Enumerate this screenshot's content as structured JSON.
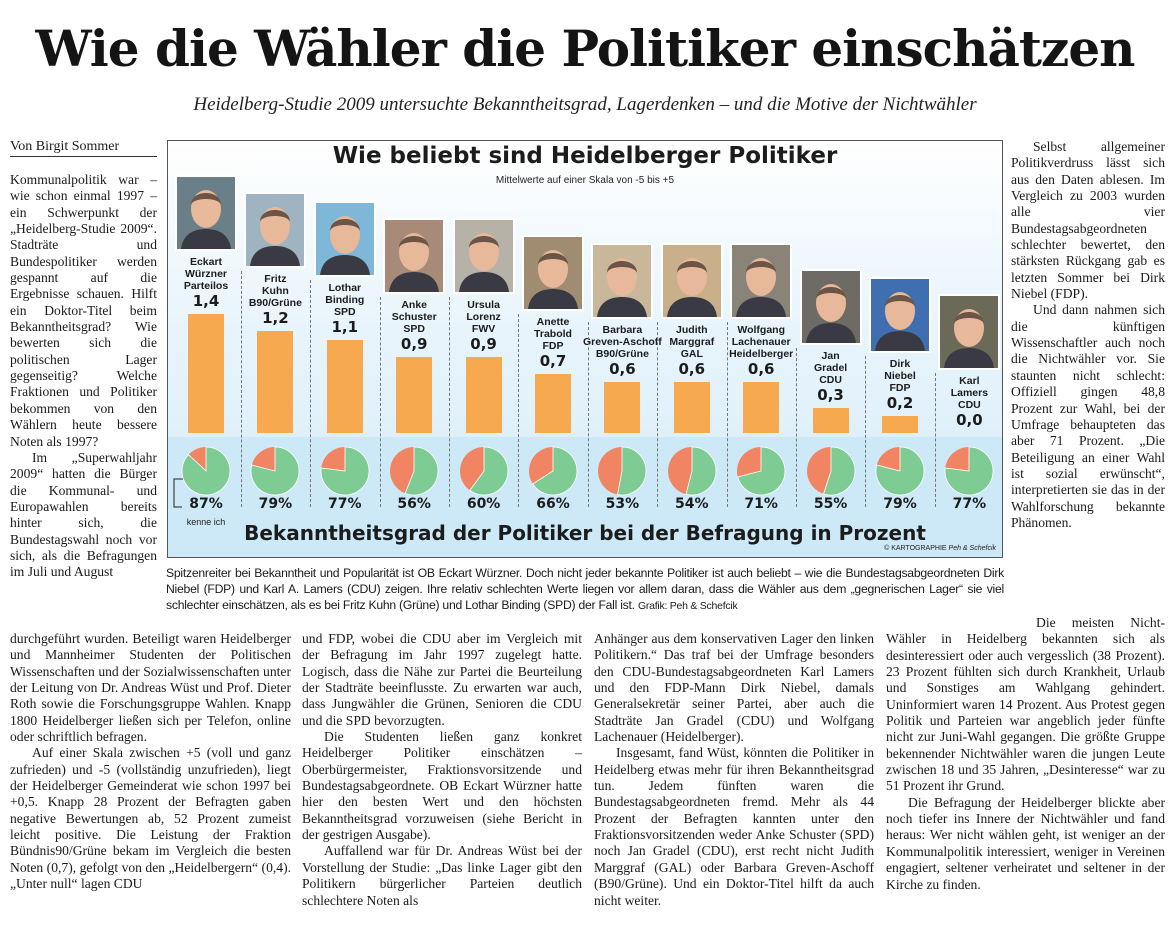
{
  "headline": "Wie die Wähler die Politiker einschätzen",
  "subline": "Heidelberg-Studie 2009 untersuchte Bekanntheitsgrad, Lagerdenken – und die Motive der Nichtwähler",
  "author": "Von Birgit Sommer",
  "columns": {
    "left_top": [
      "Kommunalpolitik war – wie schon einmal 1997 – ein Schwerpunkt der „Heidelberg-Studie 2009“. Stadträte und Bundespolitiker werden gespannt auf die Ergebnisse schauen. Hilft ein Doktor-Titel beim Bekanntheitsgrad? Wie bewerten sich die politischen Lager gegenseitig? Welche Fraktionen und Politiker bekommen von den Wählern heute bessere Noten als 1997?",
      "Im „Superwahljahr 2009“ hatten die Bürger die Kommunal- und Europawahlen bereits hinter sich, die Bundestagswahl noch vor sich, als die Befragungen im Juli und August"
    ],
    "right_top": [
      "Selbst allgemeiner Politikverdruss lässt sich aus den Daten ablesen. Im Vergleich zu 2003 wurden alle vier Bundestagsabgeordneten schlechter bewertet, den stärksten Rückgang gab es letzten Sommer bei Dirk Niebel (FDP).",
      "Und dann nahmen sich die künftigen Wissenschaftler auch noch die Nichtwähler vor. Sie staunten nicht schlecht: Offiziell gingen 48,8 Prozent zur Wahl, bei der Umfrage behaupteten das aber 71 Prozent. „Die Beteiligung an einer Wahl ist sozial erwünscht“, interpretierten sie das in der Wahlforschung bekannte Phänomen."
    ],
    "bottom_1": [
      "durchgeführt wurden. Beteiligt waren Heidelberger und Mannheimer Studenten der Politischen Wissenschaften und der Sozialwissenschaften unter der Leitung von Dr. Andreas Wüst und Prof. Dieter Roth sowie die Forschungsgruppe Wahlen. Knapp 1800 Heidelberger ließen sich per Telefon, online oder schriftlich befragen.",
      "Auf einer Skala zwischen +5 (voll und ganz zufrieden) und -5 (vollständig unzufrieden), liegt der Heidelberger Gemeinderat wie schon 1997 bei +0,5. Knapp 28 Prozent der Befragten gaben negative Bewertungen ab, 52 Prozent zumeist leicht positive. Die Leistung der Fraktion Bündnis90/Grüne bekam im Vergleich die besten Noten (0,7), gefolgt von den „Heidelbergern“ (0,4). „Unter null“ lagen CDU"
    ],
    "bottom_2": [
      "und FDP, wobei die CDU aber im Vergleich mit der Befragung im Jahr 1997 zugelegt hatte. Logisch, dass die Nähe zur Partei die Beurteilung der Stadträte beeinflusste. Zu erwarten war auch, dass Jungwähler die Grünen, Senioren die CDU und die SPD bevorzugten.",
      "Die Studenten ließen ganz konkret Heidelberger Politiker einschätzen – Oberbürgermeister, Fraktionsvorsitzende und Bundestagsabgeordnete. OB Eckart Würzner hatte hier den besten Wert und den höchsten Bekanntheitsgrad vorzuweisen (siehe Bericht in der gestrigen Ausgabe).",
      "Auffallend war für Dr. Andreas Wüst bei der Vorstellung der Studie: „Das linke Lager gibt den Politikern bürgerlicher Parteien deutlich schlechtere Noten als"
    ],
    "bottom_3": [
      "Anhänger aus dem konservativen Lager den linken Politikern.“ Das traf bei der Umfrage besonders den CDU-Bundestagsabgeordneten Karl Lamers und den FDP-Mann Dirk Niebel, damals Generalsekretär seiner Partei, aber auch die Stadträte Jan Gradel (CDU) und Wolfgang Lachenauer (Heidelberger).",
      "Insgesamt, fand Wüst, könnten die Politiker in Heidelberg etwas mehr für ihren Bekanntheitsgrad tun. Jedem fünften waren die Bundestagsabgeordneten fremd. Mehr als 44 Prozent der Befragten kannten unter den Fraktionsvorsitzenden weder Anke Schuster (SPD) noch Jan Gradel (CDU), erst recht nicht Judith Marggraf (GAL) oder Barbara Greven-Aschoff (B90/Grüne). Und ein Doktor-Titel hilft da auch nicht weiter."
    ],
    "bottom_4": [
      "Die meisten Nicht-Wähler in Heidelberg bekannten sich als desinteressiert oder auch vergesslich (38 Prozent). 23 Prozent fühlten sich durch Krankheit, Urlaub und Sonstiges am Wahlgang gehindert. Uninformiert waren 14 Prozent. Aus Protest gegen Politik und Parteien war angeblich jeder fünfte nicht zur Juni-Wahl gegangen. Die größte Gruppe bekennender Nichtwähler waren die jungen Leute zwischen 18 und 35 Jahren, „Desinteresse“ war zu 51 Prozent ihr Grund.",
      "Die Befragung der Heidelberger blickte aber noch tiefer ins Innere der Nichtwähler und fand heraus: Wer nicht wählen geht, ist weniger an der Kommunalpolitik interessiert, weniger in Vereinen engagiert, seltener verheiratet und seltener in der Kirche zu finden."
    ]
  },
  "caption": {
    "text": "Spitzenreiter bei Bekanntheit und Popularität ist OB Eckart Würzner. Doch nicht jeder bekannte Politiker ist auch beliebt – wie die Bundestagsabgeordneten Dirk Niebel (FDP) und Karl A. Lamers (CDU) zeigen. Ihre relativ schlechten Werte liegen vor allem daran, dass die Wähler aus dem „gegnerischen Lager“ sie viel schlechter einschätzen, als es bei Fritz Kuhn (Grüne) und Lothar Binding (SPD) der Fall ist.",
    "credit": "Grafik: Peh & Schefcik"
  },
  "chart_data": {
    "type": "bar",
    "title": "Wie beliebt sind Heidelberger Politiker",
    "subtitle": "Mittelwerte auf einer Skala von -5 bis +5",
    "secondary_title": "Bekanntheitsgrad der Politiker bei der Befragung in Prozent",
    "secondary_type": "pie",
    "pie_label": "kenne ich",
    "copyright": "© KARTOGRAPHIE",
    "copyright_names": "Peh & Schefcik",
    "ylim": [
      0,
      1.4
    ],
    "colors": {
      "bar": "#f7a94f",
      "known": "#7fcb94",
      "unknown": "#f08463"
    },
    "politicians": [
      {
        "first": "Eckart",
        "last": "Würzner",
        "party": "Parteilos",
        "value": 1.4,
        "value_label": "1,4",
        "known": 87,
        "known_label": "87%"
      },
      {
        "first": "Fritz",
        "last": "Kuhn",
        "party": "B90/Grüne",
        "value": 1.2,
        "value_label": "1,2",
        "known": 79,
        "known_label": "79%"
      },
      {
        "first": "Lothar",
        "last": "Binding",
        "party": "SPD",
        "value": 1.1,
        "value_label": "1,1",
        "known": 77,
        "known_label": "77%"
      },
      {
        "first": "Anke",
        "last": "Schuster",
        "party": "SPD",
        "value": 0.9,
        "value_label": "0,9",
        "known": 56,
        "known_label": "56%"
      },
      {
        "first": "Ursula",
        "last": "Lorenz",
        "party": "FWV",
        "value": 0.9,
        "value_label": "0,9",
        "known": 60,
        "known_label": "60%"
      },
      {
        "first": "Anette",
        "last": "Trabold",
        "party": "FDP",
        "value": 0.7,
        "value_label": "0,7",
        "known": 66,
        "known_label": "66%"
      },
      {
        "first": "Barbara",
        "last": "Greven-Aschoff",
        "party": "B90/Grüne",
        "value": 0.6,
        "value_label": "0,6",
        "known": 53,
        "known_label": "53%"
      },
      {
        "first": "Judith",
        "last": "Marggraf",
        "party": "GAL",
        "value": 0.6,
        "value_label": "0,6",
        "known": 54,
        "known_label": "54%"
      },
      {
        "first": "Wolfgang",
        "last": "Lachenauer",
        "party": "Heidelberger",
        "value": 0.6,
        "value_label": "0,6",
        "known": 71,
        "known_label": "71%"
      },
      {
        "first": "Jan",
        "last": "Gradel",
        "party": "CDU",
        "value": 0.3,
        "value_label": "0,3",
        "known": 55,
        "known_label": "55%"
      },
      {
        "first": "Dirk",
        "last": "Niebel",
        "party": "FDP",
        "value": 0.2,
        "value_label": "0,2",
        "known": 79,
        "known_label": "79%"
      },
      {
        "first": "Karl",
        "last": "Lamers",
        "party": "CDU",
        "value": 0.0,
        "value_label": "0,0",
        "known": 77,
        "known_label": "77%"
      }
    ]
  }
}
